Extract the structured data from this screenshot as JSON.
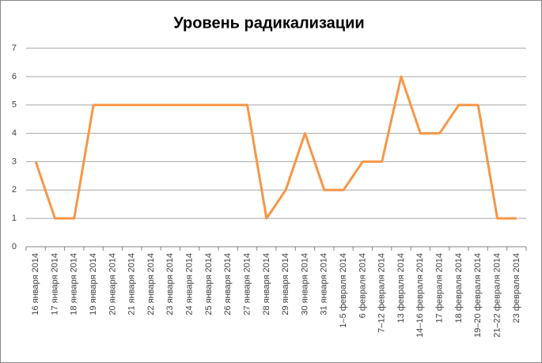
{
  "chart_data": {
    "type": "line",
    "title": "Уровень радикализации",
    "categories": [
      "16 января 2014",
      "17 января 2014",
      "18 января 2014",
      "19 января 2014",
      "20 января 2014",
      "21 января 2014",
      "22 января 2014",
      "23 января 2014",
      "24 января 2014",
      "25 января 2014",
      "26 января 2014",
      "27 января 2014",
      "28 января 2014",
      "29 января 2014",
      "30 января 2014",
      "31 января 2014",
      "1–5 февраля 2014",
      "6 февраля 2014",
      "7–12 февраля 2014",
      "13 февраля 2014",
      "14–16 февраля 2014",
      "17 февраля 2014",
      "18 февраля 2014",
      "19–20 февраля 2014",
      "21–22 февраля 2014",
      "23 февраля 2014"
    ],
    "values": [
      3,
      1,
      1,
      5,
      5,
      5,
      5,
      5,
      5,
      5,
      5,
      5,
      1,
      2,
      4,
      2,
      2,
      3,
      3,
      6,
      4,
      4,
      5,
      5,
      1,
      1
    ],
    "color": "#f79646",
    "ylim": [
      0,
      7
    ],
    "yticks": [
      0,
      1,
      2,
      3,
      4,
      5,
      6,
      7
    ],
    "grid": true
  }
}
